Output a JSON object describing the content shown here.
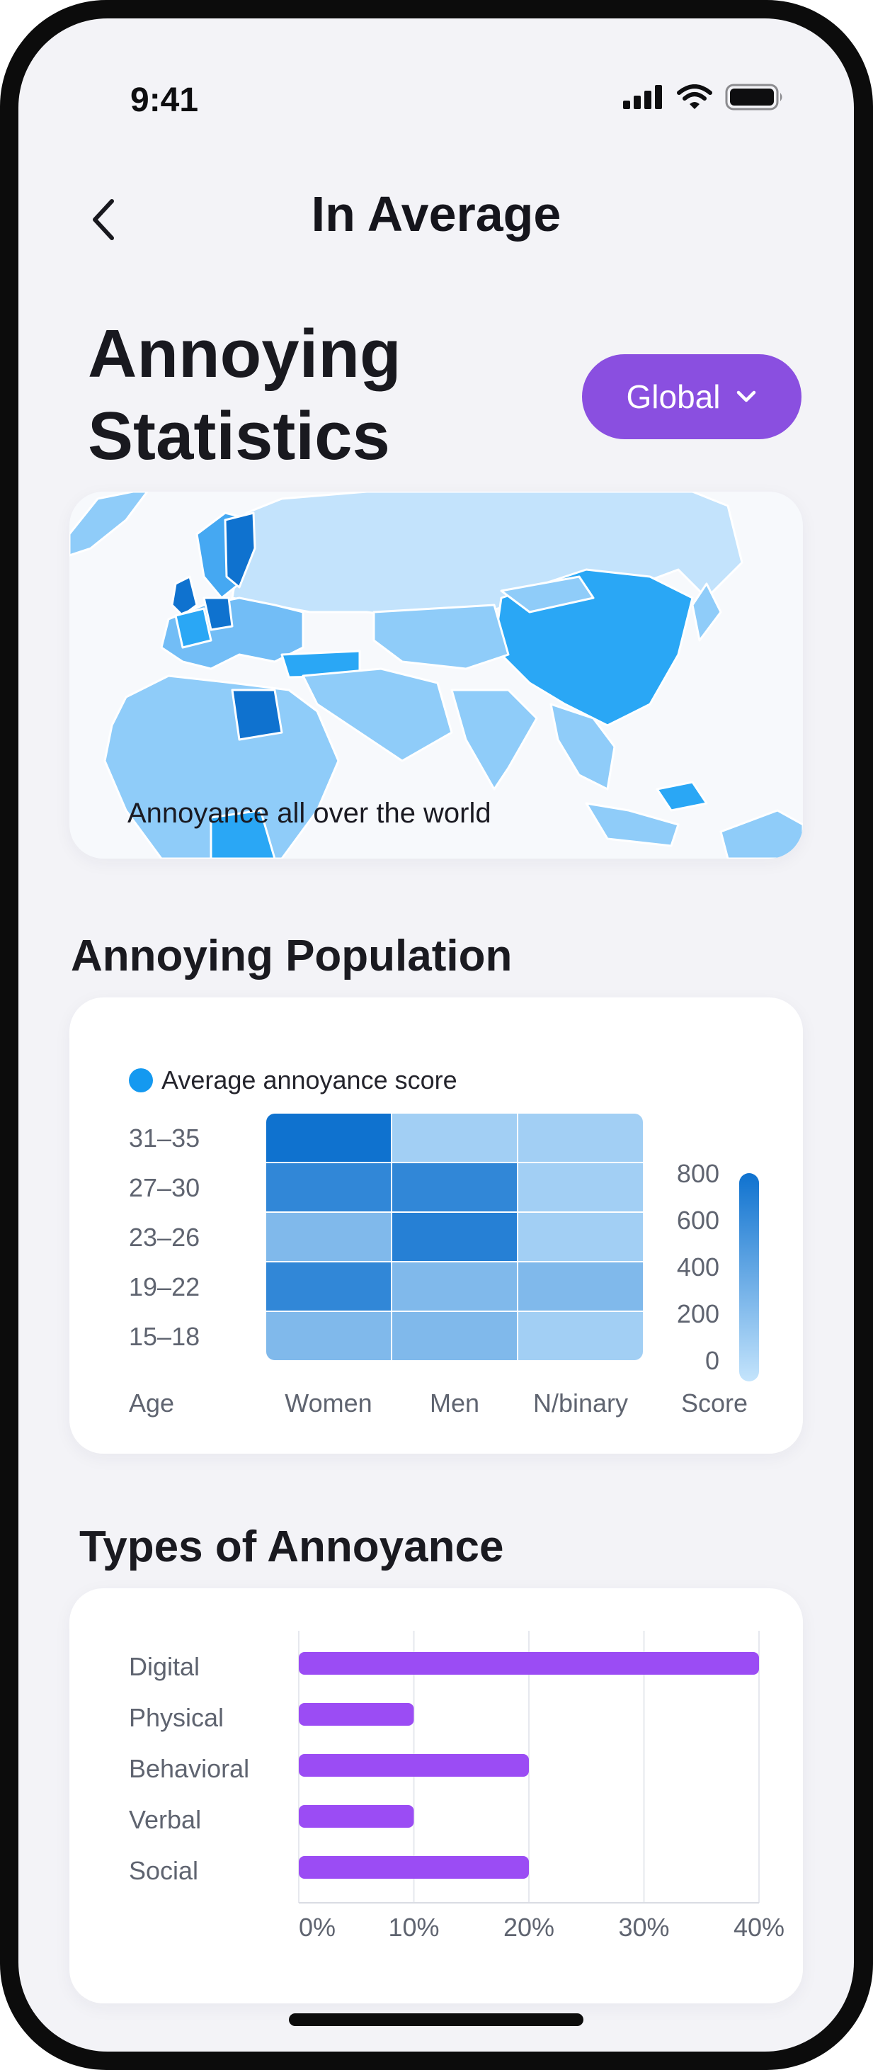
{
  "status_bar": {
    "time": "9:41"
  },
  "header": {
    "title": "In Average"
  },
  "page": {
    "title_line1": "Annoying",
    "title_line2": "Statistics"
  },
  "region_dropdown": {
    "selected": "Global"
  },
  "map_card": {
    "caption": "Annoyance all over the world"
  },
  "population_section": {
    "title": "Annoying Population"
  },
  "types_section": {
    "title": "Types of Annoyance"
  },
  "colors": {
    "accent_purple": "#8a4fe0",
    "bar_purple": "#9b4cf4",
    "heat_blue": "#1499f0"
  },
  "chart_data": [
    {
      "type": "heatmap",
      "legend": "Average annoyance score",
      "xlabel": "Age",
      "colorbar_label": "Score",
      "rows": [
        "31–35",
        "27–30",
        "23–26",
        "19–22",
        "15–18"
      ],
      "columns": [
        "Women",
        "Men",
        "N/binary"
      ],
      "values": [
        [
          800,
          150,
          150
        ],
        [
          650,
          650,
          150
        ],
        [
          300,
          700,
          150
        ],
        [
          650,
          300,
          300
        ],
        [
          300,
          300,
          150
        ]
      ],
      "colorbar_ticks": [
        "800",
        "600",
        "400",
        "200",
        "0"
      ],
      "range": [
        0,
        800
      ]
    },
    {
      "type": "bar",
      "orientation": "horizontal",
      "categories": [
        "Digital",
        "Physical",
        "Behavioral",
        "Verbal",
        "Social"
      ],
      "values": [
        40,
        10,
        20,
        10,
        20
      ],
      "x_ticks": [
        "0%",
        "10%",
        "20%",
        "30%",
        "40%"
      ],
      "xlim": [
        0,
        40
      ]
    }
  ]
}
